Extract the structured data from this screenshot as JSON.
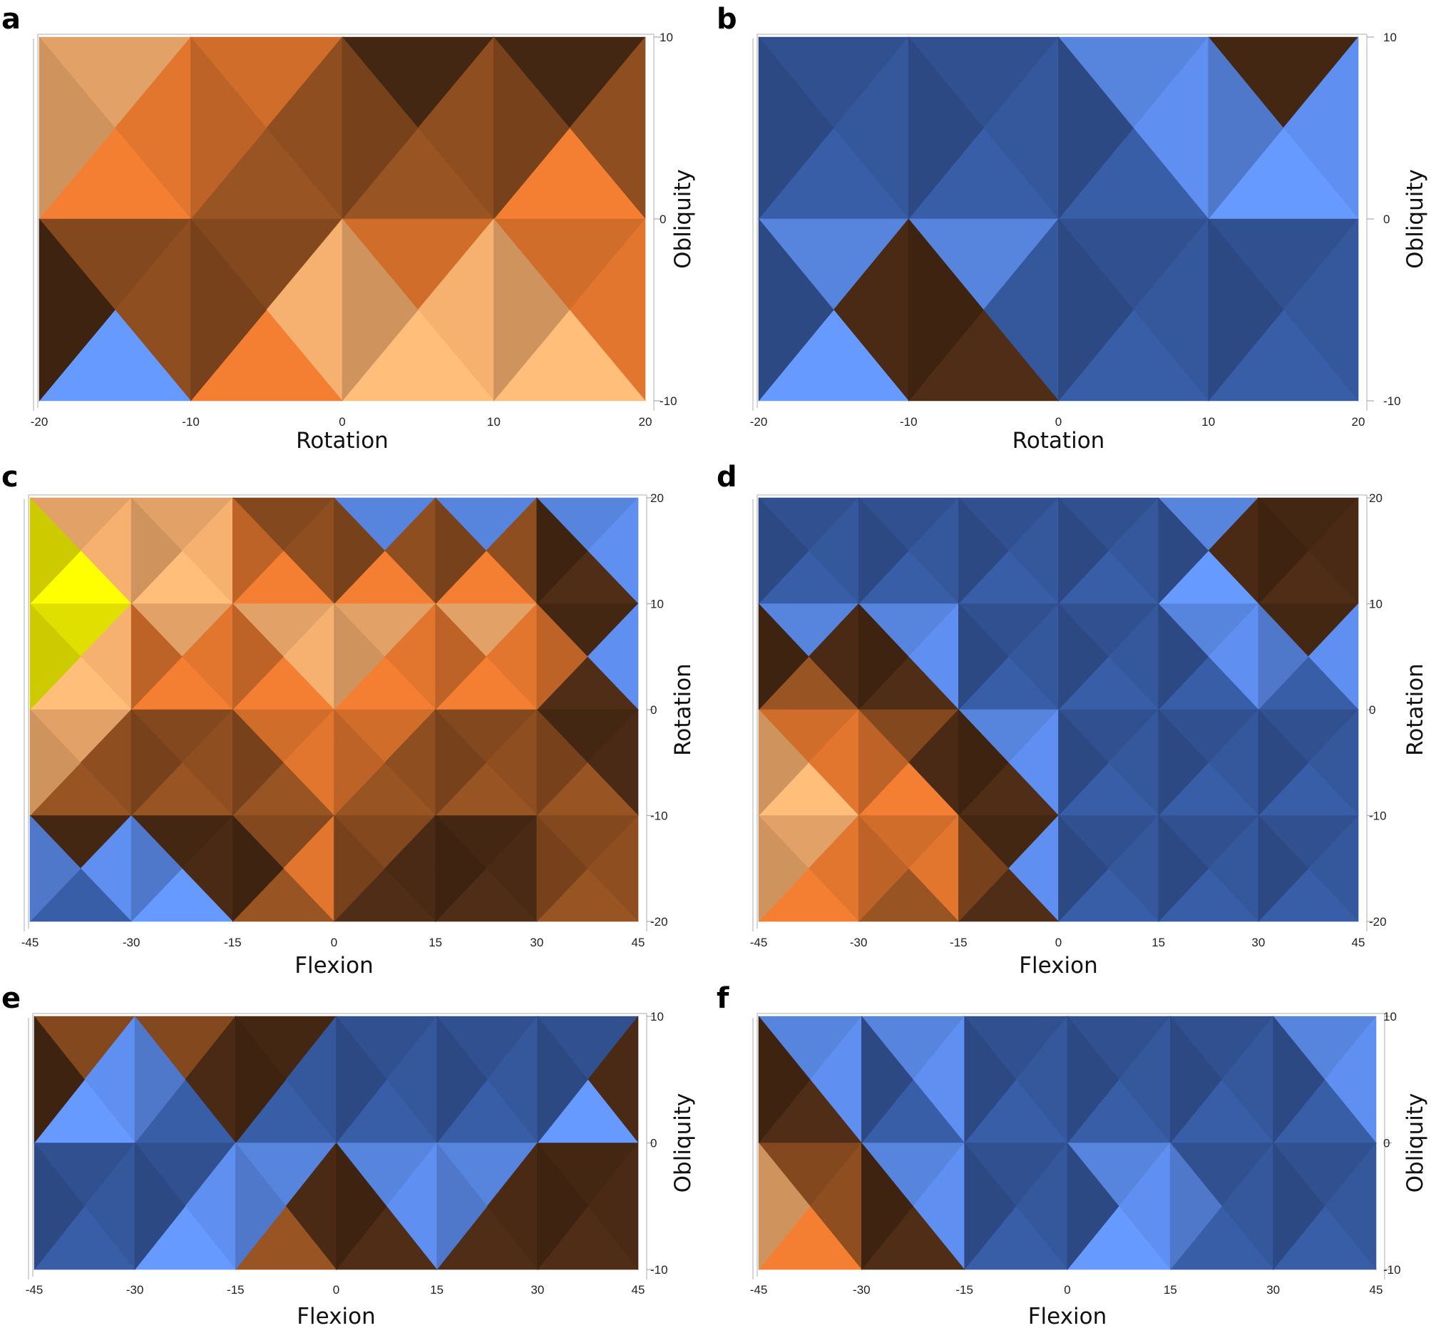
{
  "chart_data": [
    {
      "panel": "a",
      "type": "heatmap",
      "title": "",
      "xlabel": "Rotation",
      "ylabel": "Obliquity",
      "x_ticks": [
        -20,
        -10,
        0,
        10,
        20
      ],
      "y_ticks": [
        10,
        0,
        -10
      ],
      "xlim": [
        -20,
        20
      ],
      "ylim": [
        -10,
        10
      ],
      "x": [
        -20,
        -10,
        0,
        10,
        20
      ],
      "y": [
        10,
        0,
        -10
      ],
      "values": [
        [
          0.6,
          0.72,
          -0.1,
          -0.42,
          0.05
        ],
        [
          0.25,
          -0.05,
          0.15,
          0.3,
          0.3
        ],
        [
          -0.8,
          0.1,
          0.7,
          0.55,
          0.35
        ]
      ],
      "surface_palette": [
        "#1e2c5c",
        "#35579c",
        "#5f8ff0",
        "#4a2a14",
        "#8e4e20",
        "#e2762f",
        "#f6b070",
        "#f4f200"
      ]
    },
    {
      "panel": "b",
      "type": "heatmap",
      "title": "",
      "xlabel": "Rotation",
      "ylabel": "Obliquity",
      "x_ticks": [
        -20,
        -10,
        0,
        10,
        20
      ],
      "y_ticks": [
        10,
        0,
        -10
      ],
      "xlim": [
        -20,
        20
      ],
      "ylim": [
        -10,
        10
      ],
      "x": [
        -20,
        -10,
        0,
        10,
        20
      ],
      "y": [
        10,
        0,
        -10
      ],
      "values": [
        [
          -0.48,
          -0.62,
          -0.72,
          -0.1,
          -0.05
        ],
        [
          -0.5,
          -0.48,
          -0.58,
          -0.58,
          -0.52
        ],
        [
          -0.75,
          0.2,
          -0.56,
          -0.56,
          -0.56
        ]
      ],
      "surface_palette": [
        "#1e2c5c",
        "#35579c",
        "#5f8ff0",
        "#4a2a14",
        "#8e4e20",
        "#e2762f",
        "#f6b070",
        "#f4f200"
      ]
    },
    {
      "panel": "c",
      "type": "heatmap",
      "title": "",
      "xlabel": "Flexion",
      "ylabel": "Rotation",
      "x_ticks": [
        -45,
        -30,
        -15,
        0,
        15,
        30,
        45
      ],
      "y_ticks": [
        20,
        10,
        0,
        -10,
        -20
      ],
      "xlim": [
        -45,
        45
      ],
      "ylim": [
        -20,
        20
      ],
      "x": [
        -45,
        -30,
        -15,
        0,
        15,
        30,
        45
      ],
      "y": [
        20,
        10,
        0,
        -10,
        -20
      ],
      "values": [
        [
          0.55,
          0.45,
          0.35,
          -0.52,
          -0.42,
          -0.48,
          -0.5
        ],
        [
          0.75,
          0.45,
          0.35,
          0.42,
          0.35,
          0.42,
          -0.52
        ],
        [
          0.85,
          0.2,
          0.1,
          0.4,
          0.2,
          0.15,
          -0.45
        ],
        [
          0.05,
          -0.05,
          -0.1,
          0.25,
          -0.05,
          -0.1,
          0.2
        ],
        [
          -0.72,
          -0.78,
          -0.25,
          0.2,
          -0.55,
          0.1,
          0.1
        ]
      ],
      "surface_palette": [
        "#1e2c5c",
        "#35579c",
        "#5f8ff0",
        "#4a2a14",
        "#8e4e20",
        "#e2762f",
        "#f6b070",
        "#f4f200"
      ]
    },
    {
      "panel": "d",
      "type": "heatmap",
      "title": "",
      "xlabel": "Flexion",
      "ylabel": "Rotation",
      "x_ticks": [
        -45,
        -30,
        -15,
        0,
        15,
        30,
        45
      ],
      "y_ticks": [
        20,
        10,
        0,
        -10,
        -20
      ],
      "xlim": [
        -45,
        45
      ],
      "ylim": [
        -20,
        20
      ],
      "x": [
        -45,
        -30,
        -15,
        0,
        15,
        30,
        45
      ],
      "y": [
        20,
        10,
        0,
        -10,
        -20
      ],
      "values": [
        [
          -0.55,
          -0.52,
          -0.52,
          -0.62,
          -0.58,
          -0.1,
          -0.1
        ],
        [
          -0.48,
          -0.5,
          -0.58,
          -0.62,
          -0.68,
          -0.05,
          -0.1
        ],
        [
          0.2,
          0.35,
          -0.5,
          -0.55,
          -0.65,
          -0.62,
          -0.6
        ],
        [
          0.75,
          0.25,
          0.25,
          -0.48,
          -0.62,
          -0.62,
          -0.55
        ],
        [
          0.25,
          0.15,
          0.1,
          -0.6,
          -0.58,
          -0.6,
          -0.56
        ]
      ],
      "surface_palette": [
        "#1e2c5c",
        "#35579c",
        "#5f8ff0",
        "#4a2a14",
        "#8e4e20",
        "#e2762f",
        "#f6b070",
        "#f4f200"
      ]
    },
    {
      "panel": "e",
      "type": "heatmap",
      "title": "",
      "xlabel": "Flexion",
      "ylabel": "Obliquity",
      "x_ticks": [
        -45,
        -30,
        -15,
        0,
        15,
        30,
        45
      ],
      "y_ticks": [
        10,
        0,
        -10
      ],
      "xlim": [
        -45,
        45
      ],
      "ylim": [
        -10,
        10
      ],
      "x": [
        -45,
        -30,
        -15,
        0,
        15,
        30,
        45
      ],
      "y": [
        10,
        0,
        -10
      ],
      "values": [
        [
          0.2,
          0.05,
          0.25,
          -0.58,
          -0.55,
          -0.72,
          -0.52
        ],
        [
          -0.52,
          -0.68,
          -0.6,
          -0.55,
          -0.45,
          -0.58,
          0.15
        ],
        [
          -0.55,
          -0.7,
          -0.05,
          0.45,
          -0.48,
          0.2,
          -0.55
        ]
      ],
      "surface_palette": [
        "#1e2c5c",
        "#35579c",
        "#5f8ff0",
        "#4a2a14",
        "#8e4e20",
        "#e2762f",
        "#f6b070",
        "#f4f200"
      ]
    },
    {
      "panel": "f",
      "type": "heatmap",
      "title": "",
      "xlabel": "Flexion",
      "ylabel": "Obliquity",
      "x_ticks": [
        -45,
        -30,
        -15,
        0,
        15,
        30,
        45
      ],
      "y_ticks": [
        10,
        0,
        -10
      ],
      "xlim": [
        -45,
        45
      ],
      "ylim": [
        -10,
        10
      ],
      "x": [
        -45,
        -30,
        -15,
        0,
        15,
        30,
        45
      ],
      "y": [
        10,
        0,
        -10
      ],
      "values": [
        [
          -0.45,
          -0.52,
          -0.45,
          -0.75,
          -0.72,
          -0.78,
          -0.05
        ],
        [
          0.45,
          -0.52,
          -0.48,
          -0.5,
          -0.45,
          -0.58,
          -0.6
        ],
        [
          0.5,
          0.3,
          -0.5,
          -0.5,
          -0.45,
          -0.55,
          -0.55
        ]
      ],
      "surface_palette": [
        "#1e2c5c",
        "#35579c",
        "#5f8ff0",
        "#4a2a14",
        "#8e4e20",
        "#e2762f",
        "#f6b070",
        "#f4f200"
      ]
    }
  ]
}
